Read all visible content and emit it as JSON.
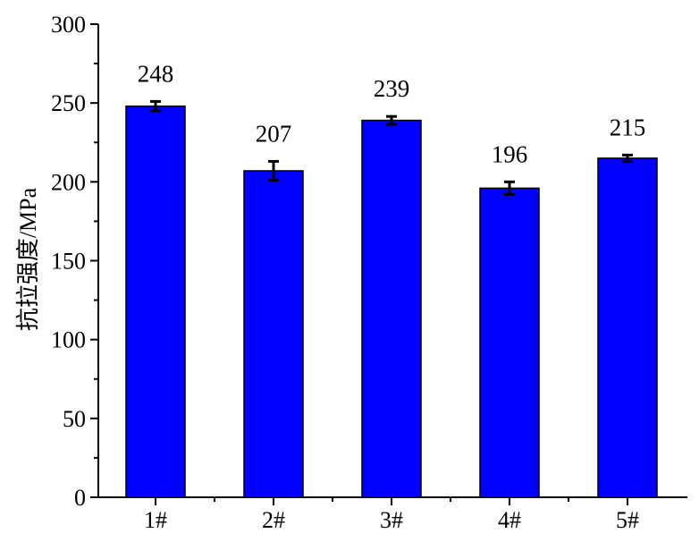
{
  "chart_data": {
    "type": "bar",
    "categories": [
      "1#",
      "2#",
      "3#",
      "4#",
      "5#"
    ],
    "values": [
      248,
      207,
      239,
      196,
      215
    ],
    "error_bars": [
      3,
      6,
      2.5,
      4,
      2
    ],
    "data_labels": [
      "248",
      "207",
      "239",
      "196",
      "215"
    ],
    "title": "",
    "xlabel": "",
    "ylabel": "抗拉强度/MPa",
    "ylim": [
      0,
      300
    ],
    "yticks": [
      0,
      50,
      100,
      150,
      200,
      250,
      300
    ],
    "ytick_labels": [
      "0",
      "50",
      "100",
      "150",
      "200",
      "250",
      "300"
    ],
    "grid": false,
    "bar_color": "#0000ff",
    "bar_edge_color": "#000000"
  }
}
